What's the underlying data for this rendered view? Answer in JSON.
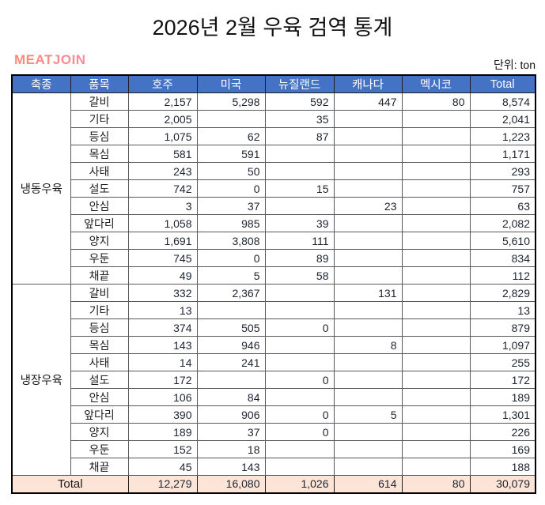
{
  "header": {
    "title": "2026년 2월 우육  검역 통계",
    "logo": "MEATJOIN",
    "unit": "단위: ton"
  },
  "colors": {
    "header_bg": "#4472c4",
    "header_text": "#ffffff",
    "total_row_bg": "#fce4d6",
    "logo_pink": "#f9828d"
  },
  "table": {
    "columns": [
      "축종",
      "품목",
      "호주",
      "미국",
      "뉴질랜드",
      "캐나다",
      "멕시코",
      "Total"
    ],
    "sections": [
      {
        "name": "냉동우육",
        "rows": [
          {
            "item": "갈비",
            "values": [
              "2,157",
              "5,298",
              "592",
              "447",
              "80",
              "8,574"
            ]
          },
          {
            "item": "기타",
            "values": [
              "2,005",
              "",
              "35",
              "",
              "",
              "2,041"
            ]
          },
          {
            "item": "등심",
            "values": [
              "1,075",
              "62",
              "87",
              "",
              "",
              "1,223"
            ]
          },
          {
            "item": "목심",
            "values": [
              "581",
              "591",
              "",
              "",
              "",
              "1,171"
            ]
          },
          {
            "item": "사태",
            "values": [
              "243",
              "50",
              "",
              "",
              "",
              "293"
            ]
          },
          {
            "item": "설도",
            "values": [
              "742",
              "0",
              "15",
              "",
              "",
              "757"
            ]
          },
          {
            "item": "안심",
            "values": [
              "3",
              "37",
              "",
              "23",
              "",
              "63"
            ]
          },
          {
            "item": "앞다리",
            "values": [
              "1,058",
              "985",
              "39",
              "",
              "",
              "2,082"
            ]
          },
          {
            "item": "양지",
            "values": [
              "1,691",
              "3,808",
              "111",
              "",
              "",
              "5,610"
            ]
          },
          {
            "item": "우둔",
            "values": [
              "745",
              "0",
              "89",
              "",
              "",
              "834"
            ]
          },
          {
            "item": "채끝",
            "values": [
              "49",
              "5",
              "58",
              "",
              "",
              "112"
            ]
          }
        ]
      },
      {
        "name": "냉장우육",
        "rows": [
          {
            "item": "갈비",
            "values": [
              "332",
              "2,367",
              "",
              "131",
              "",
              "2,829"
            ]
          },
          {
            "item": "기타",
            "values": [
              "13",
              "",
              "",
              "",
              "",
              "13"
            ]
          },
          {
            "item": "등심",
            "values": [
              "374",
              "505",
              "0",
              "",
              "",
              "879"
            ]
          },
          {
            "item": "목심",
            "values": [
              "143",
              "946",
              "",
              "8",
              "",
              "1,097"
            ]
          },
          {
            "item": "사태",
            "values": [
              "14",
              "241",
              "",
              "",
              "",
              "255"
            ]
          },
          {
            "item": "설도",
            "values": [
              "172",
              "",
              "0",
              "",
              "",
              "172"
            ]
          },
          {
            "item": "안심",
            "values": [
              "106",
              "84",
              "",
              "",
              "",
              "189"
            ]
          },
          {
            "item": "앞다리",
            "values": [
              "390",
              "906",
              "0",
              "5",
              "",
              "1,301"
            ]
          },
          {
            "item": "양지",
            "values": [
              "189",
              "37",
              "0",
              "",
              "",
              "226"
            ]
          },
          {
            "item": "우둔",
            "values": [
              "152",
              "18",
              "",
              "",
              "",
              "169"
            ]
          },
          {
            "item": "채끝",
            "values": [
              "45",
              "143",
              "",
              "",
              "",
              "188"
            ]
          }
        ]
      }
    ],
    "total": {
      "label": "Total",
      "values": [
        "12,279",
        "16,080",
        "1,026",
        "614",
        "80",
        "30,079"
      ]
    }
  }
}
